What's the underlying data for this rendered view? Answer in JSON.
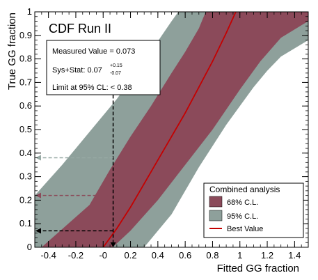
{
  "chart_data": {
    "type": "area",
    "title": "CDF Run II",
    "xlabel": "Fitted GG fraction",
    "ylabel": "True GG fraction",
    "xlim": [
      -0.5,
      1.5
    ],
    "ylim": [
      0,
      1
    ],
    "x_ticks": [
      "-0.4",
      "-0.2",
      "-0",
      "0.2",
      "0.4",
      "0.6",
      "0.8",
      "1",
      "1.2",
      "1.4"
    ],
    "x_tick_values": [
      -0.4,
      -0.2,
      0,
      0.2,
      0.4,
      0.6,
      0.8,
      1.0,
      1.2,
      1.4
    ],
    "y_ticks": [
      "0",
      "0.1",
      "0.2",
      "0.3",
      "0.4",
      "0.5",
      "0.6",
      "0.7",
      "0.8",
      "0.9",
      "1"
    ],
    "y_tick_values": [
      0,
      0.1,
      0.2,
      0.3,
      0.4,
      0.5,
      0.6,
      0.7,
      0.8,
      0.9,
      1.0
    ],
    "grid": false,
    "legend": {
      "placement": "bottom-right",
      "title": "Combined analysis",
      "entries": [
        {
          "label": "68% C.L.",
          "color": "#8b4a5a"
        },
        {
          "label": "95% C.L.",
          "color": "#8ea09b"
        },
        {
          "label": "Best Value",
          "color": "#c40000"
        }
      ]
    },
    "info_box": {
      "measured": "Measured Value = 0.073",
      "sys_prefix": "Sys+Stat: 0.07",
      "sys_plus": "+0.15",
      "sys_minus": "-0.07",
      "limit": "Limit at 95% CL: < 0.38"
    },
    "series": [
      {
        "name": "Best Value",
        "color": "#c40000",
        "x": [
          0.0,
          0.1,
          0.2,
          0.3,
          0.4,
          0.5,
          0.6,
          0.7,
          0.8,
          0.9,
          0.97
        ],
        "y": [
          0.0,
          0.08,
          0.17,
          0.27,
          0.37,
          0.47,
          0.57,
          0.68,
          0.79,
          0.91,
          1.0
        ]
      },
      {
        "name": "68% C.L.",
        "color": "#8b4a5a",
        "upper": {
          "x": [
            -0.45,
            -0.1,
            0.05,
            0.2,
            0.35,
            0.5,
            0.6,
            0.7,
            0.75
          ],
          "y": [
            0.0,
            0.18,
            0.33,
            0.47,
            0.6,
            0.74,
            0.83,
            0.93,
            1.0
          ]
        },
        "lower": {
          "x": [
            0.07,
            0.2,
            0.4,
            0.6,
            0.8,
            1.0,
            1.15,
            1.3,
            1.47,
            1.5
          ],
          "y": [
            0.0,
            0.07,
            0.2,
            0.35,
            0.5,
            0.67,
            0.79,
            0.89,
            0.95,
            0.96
          ]
        }
      },
      {
        "name": "95% C.L.",
        "color": "#8ea09b",
        "upper": {
          "x": [
            -0.5,
            -0.3,
            -0.1,
            0.1,
            0.3,
            0.5,
            0.55
          ],
          "y": [
            0.22,
            0.35,
            0.49,
            0.63,
            0.79,
            0.96,
            1.0
          ]
        },
        "lower": {
          "x": [
            0.3,
            0.5,
            0.7,
            0.9,
            1.1,
            1.2,
            1.3,
            1.5
          ],
          "y": [
            0.0,
            0.14,
            0.34,
            0.52,
            0.68,
            0.75,
            0.81,
            0.88
          ]
        }
      }
    ],
    "annotations": [
      {
        "kind": "vertical-arrow",
        "x": 0.073,
        "y_from": 0.86,
        "y_to": 0.0,
        "color": "#000000"
      },
      {
        "kind": "horizontal-arrow",
        "y": 0.38,
        "x_from": 0.073,
        "color": "#97a9a4"
      },
      {
        "kind": "horizontal-arrow",
        "y": 0.22,
        "x_from": 0.073,
        "color": "#8b4a5a"
      },
      {
        "kind": "horizontal-arrow",
        "y": 0.07,
        "x_from": 0.073,
        "color": "#000000"
      }
    ]
  }
}
